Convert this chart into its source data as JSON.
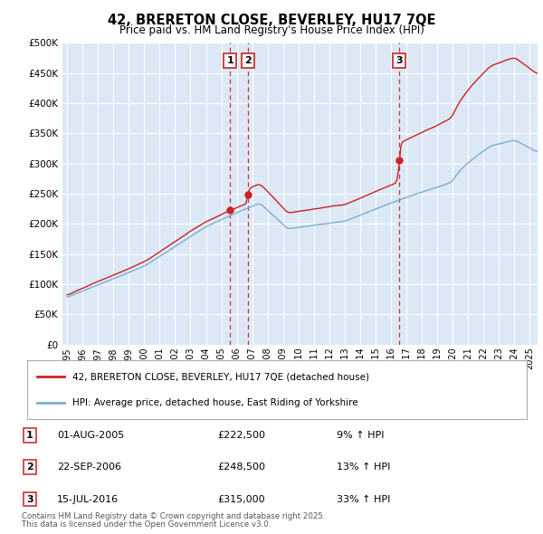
{
  "title": "42, BRERETON CLOSE, BEVERLEY, HU17 7QE",
  "subtitle": "Price paid vs. HM Land Registry's House Price Index (HPI)",
  "legend_line1": "42, BRERETON CLOSE, BEVERLEY, HU17 7QE (detached house)",
  "legend_line2": "HPI: Average price, detached house, East Riding of Yorkshire",
  "transactions": [
    {
      "num": 1,
      "date": "01-AUG-2005",
      "price": "£222,500",
      "pct": "9% ↑ HPI",
      "t": 2005.58
    },
    {
      "num": 2,
      "date": "22-SEP-2006",
      "price": "£248,500",
      "pct": "13% ↑ HPI",
      "t": 2006.72
    },
    {
      "num": 3,
      "date": "15-JUL-2016",
      "price": "£315,000",
      "pct": "33% ↑ HPI",
      "t": 2016.54
    }
  ],
  "footnote1": "Contains HM Land Registry data © Crown copyright and database right 2025.",
  "footnote2": "This data is licensed under the Open Government Licence v3.0.",
  "ylim": [
    0,
    500000
  ],
  "yticks": [
    0,
    50000,
    100000,
    150000,
    200000,
    250000,
    300000,
    350000,
    400000,
    450000,
    500000
  ],
  "xlim_left": 1994.7,
  "xlim_right": 2025.5,
  "plot_bg_color": "#dce8f5",
  "outer_bg_color": "#ffffff",
  "hpi_color": "#7bafd4",
  "price_color": "#cc2222",
  "vline_color": "#cc3333",
  "grid_color": "#ffffff",
  "dot_color": "#cc2222"
}
